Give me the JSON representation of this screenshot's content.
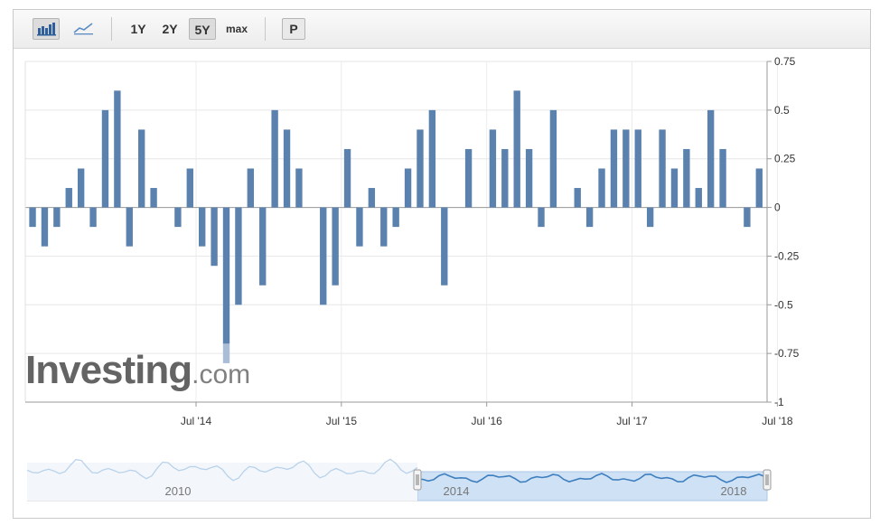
{
  "toolbar": {
    "range_1y": "1Y",
    "range_2y": "2Y",
    "range_5y": "5Y",
    "range_max": "max",
    "p_label": "P",
    "active_range": "5Y"
  },
  "watermark": {
    "brand": "Investing",
    "suffix": ".com"
  },
  "colors": {
    "bar": "#5b82ae",
    "bar_highlight": "#a9bdd6",
    "navigator_fill": "#cfe2f5",
    "navigator_line": "#3f7fbf"
  },
  "navigator": {
    "labels": [
      "2010",
      "2014",
      "2018"
    ]
  },
  "chart_data": {
    "type": "bar",
    "title": "",
    "xlabel": "",
    "ylabel": "",
    "ylim": [
      -1,
      0.75
    ],
    "yticks": [
      "0.75",
      "0.5",
      "0.25",
      "0",
      "-0.25",
      "-0.5",
      "-0.75",
      "-1"
    ],
    "ytick_values": [
      0.75,
      0.5,
      0.25,
      0,
      -0.25,
      -0.5,
      -0.75,
      -1
    ],
    "x_tick_labels": [
      "Jul '14",
      "Jul '15",
      "Jul '16",
      "Jul '17",
      "Jul '18"
    ],
    "x_tick_months": [
      13,
      25,
      37,
      49,
      61
    ],
    "start": "Jun '13",
    "grid": true,
    "values": [
      -0.1,
      -0.2,
      -0.1,
      0.1,
      0.2,
      -0.1,
      0.5,
      0.6,
      -0.2,
      0.4,
      0.1,
      0,
      -0.1,
      0.2,
      -0.2,
      -0.3,
      -0.8,
      -0.5,
      0.2,
      -0.4,
      0.5,
      0.4,
      0.2,
      0,
      -0.5,
      -0.4,
      0.3,
      -0.2,
      0.1,
      -0.2,
      -0.1,
      0.2,
      0.4,
      0.5,
      -0.4,
      0,
      0.3,
      0,
      0.4,
      0.3,
      0.6,
      0.3,
      -0.1,
      0.5,
      0,
      0.1,
      -0.1,
      0.2,
      0.4,
      0.4,
      0.4,
      -0.1,
      0.4,
      0.2,
      0.3,
      0.1,
      0.5,
      0.3,
      0,
      -0.1,
      0.2
    ]
  }
}
